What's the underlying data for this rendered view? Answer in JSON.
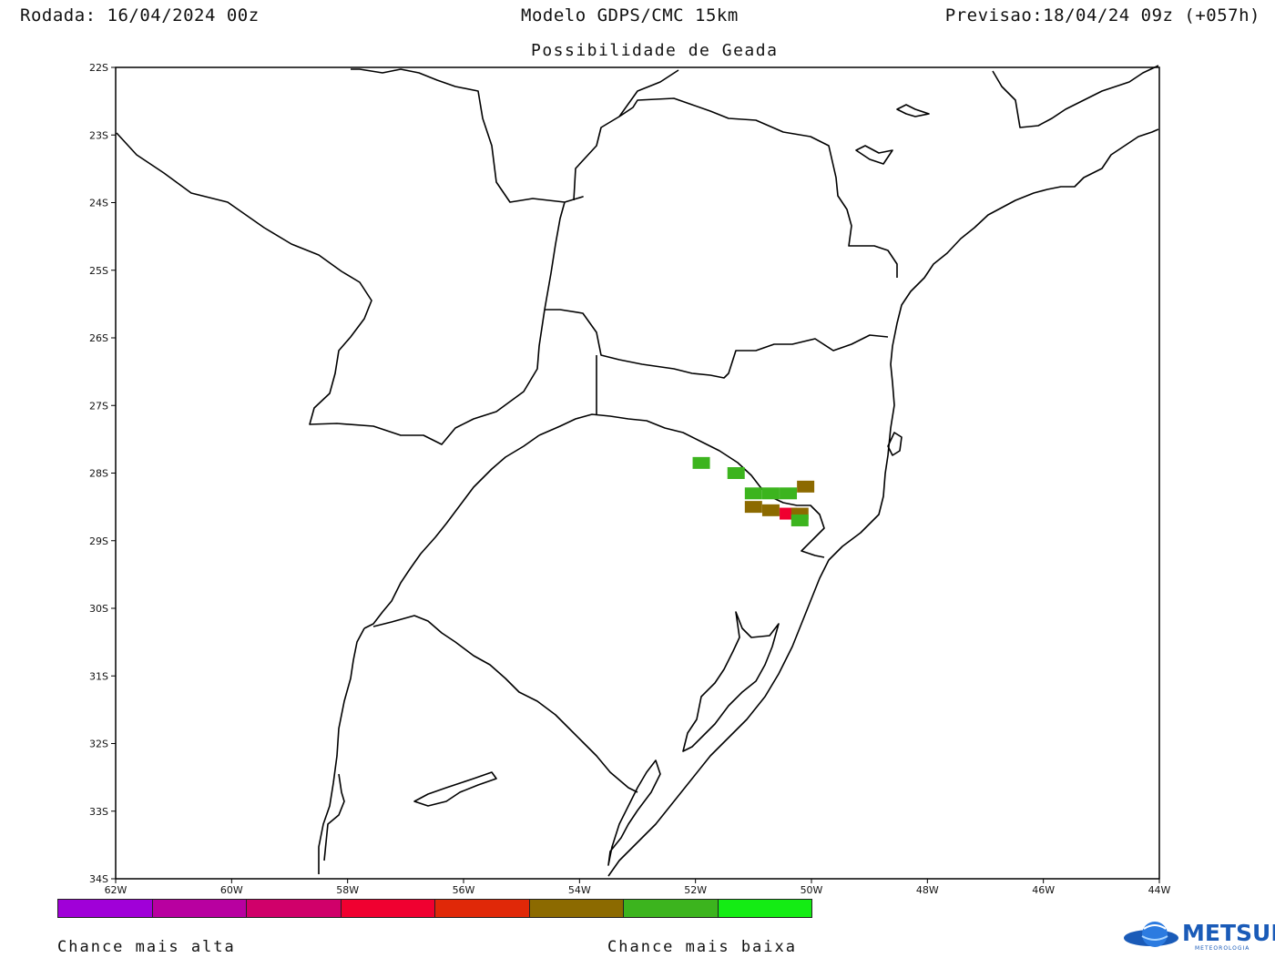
{
  "header": {
    "run_label": "Rodada: 16/04/2024 00z",
    "model_label": "Modelo GDPS/CMC 15km",
    "forecast_label": "Previsao:18/04/24 09z (+057h)"
  },
  "subtitle": "Possibilidade de Geada",
  "axes": {
    "lat_labels": [
      "22S",
      "23S",
      "24S",
      "25S",
      "26S",
      "27S",
      "28S",
      "29S",
      "30S",
      "31S",
      "32S",
      "33S",
      "34S"
    ],
    "lon_labels": [
      "62W",
      "60W",
      "58W",
      "56W",
      "54W",
      "52W",
      "50W",
      "48W",
      "46W",
      "44W"
    ],
    "lat_range": [
      -34,
      -22
    ],
    "lon_range": [
      -62,
      -44
    ]
  },
  "legend": {
    "colors": [
      "#a000d8",
      "#b800a0",
      "#d0006a",
      "#f00030",
      "#e02808",
      "#8c6a00",
      "#3cb41e",
      "#14ec14"
    ],
    "high_label": "Chance mais alta",
    "low_label": "Chance mais baixa"
  },
  "frost_cells": [
    {
      "lon": -51.9,
      "lat": -27.85,
      "class": 6
    },
    {
      "lon": -51.3,
      "lat": -28.0,
      "class": 6
    },
    {
      "lon": -51.0,
      "lat": -28.3,
      "class": 6
    },
    {
      "lon": -50.7,
      "lat": -28.3,
      "class": 6
    },
    {
      "lon": -50.4,
      "lat": -28.3,
      "class": 6
    },
    {
      "lon": -50.1,
      "lat": -28.2,
      "class": 5
    },
    {
      "lon": -51.0,
      "lat": -28.5,
      "class": 5
    },
    {
      "lon": -50.7,
      "lat": -28.55,
      "class": 5
    },
    {
      "lon": -50.4,
      "lat": -28.6,
      "class": 3
    },
    {
      "lon": -50.2,
      "lat": -28.6,
      "class": 5
    },
    {
      "lon": -50.2,
      "lat": -28.7,
      "class": 6
    }
  ],
  "logo": {
    "brand": "METSUL",
    "tagline": "METEOROLOGIA",
    "color": "#1a5bb8"
  }
}
